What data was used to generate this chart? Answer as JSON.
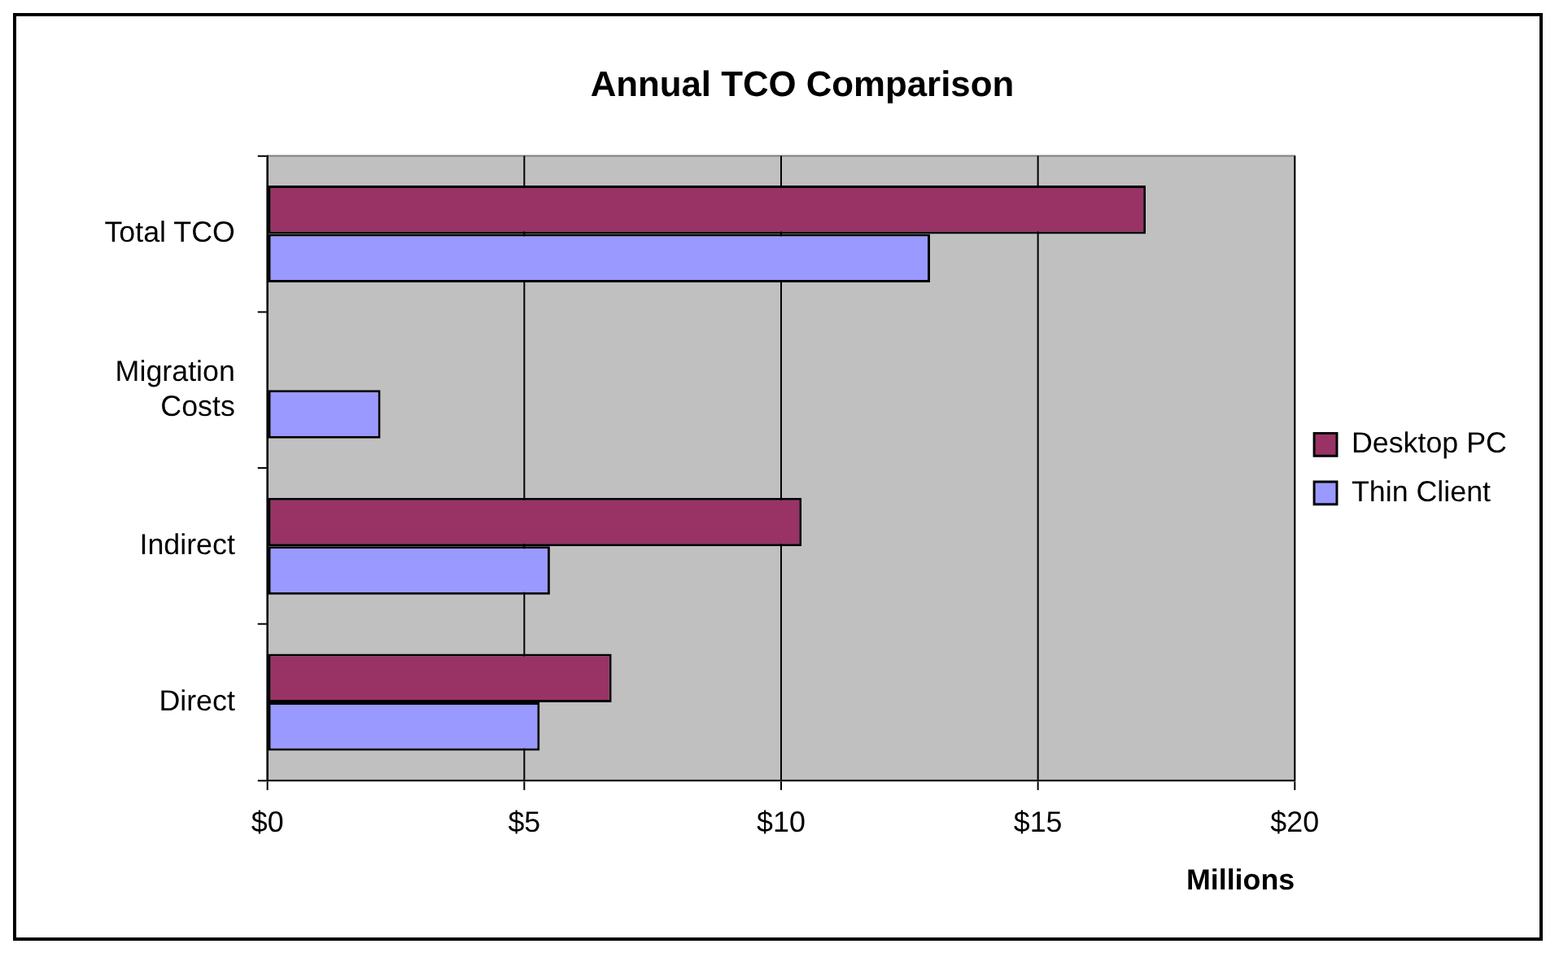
{
  "chart_data": {
    "type": "bar",
    "orientation": "horizontal",
    "title": "Annual TCO Comparison",
    "xlabel": "Millions",
    "categories": [
      "Total TCO",
      "Migration Costs",
      "Indirect",
      "Direct"
    ],
    "series": [
      {
        "name": "Desktop PC",
        "color": "#993366",
        "values": [
          17.1,
          null,
          10.4,
          6.7
        ]
      },
      {
        "name": "Thin Client",
        "color": "#9999ff",
        "values": [
          12.9,
          2.2,
          5.5,
          5.3
        ]
      }
    ],
    "xlim": [
      0,
      20
    ],
    "xticks": [
      {
        "value": 0,
        "label": "$0"
      },
      {
        "value": 5,
        "label": "$5"
      },
      {
        "value": 10,
        "label": "$10"
      },
      {
        "value": 15,
        "label": "$15"
      },
      {
        "value": 20,
        "label": "$20"
      }
    ],
    "grid": "x",
    "legend": "right"
  }
}
